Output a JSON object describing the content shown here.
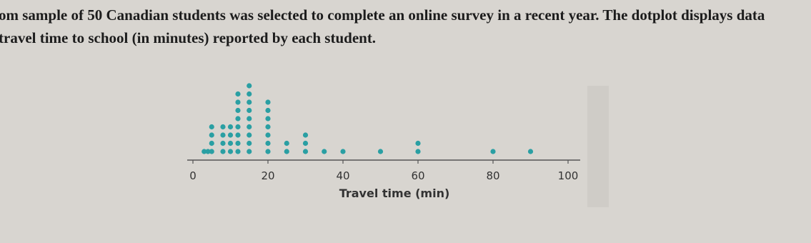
{
  "intro": [
    "om sample of 50 Canadian students was selected to complete an online survey in a recent year. The dotplot displays data",
    "travel time to school (in minutes) reported by each student."
  ],
  "chart_data": {
    "type": "dotplot",
    "x_label": "Travel time (min)",
    "color": "#2a9fa3",
    "x": [
      3,
      4,
      5,
      8,
      10,
      12,
      15,
      20,
      25,
      30,
      35,
      40,
      50,
      60,
      80,
      90
    ],
    "counts": [
      1,
      1,
      4,
      4,
      4,
      8,
      9,
      7,
      2,
      3,
      1,
      1,
      1,
      2,
      1,
      1
    ],
    "xlim": [
      0,
      100
    ],
    "xticks": [
      0,
      20,
      40,
      60,
      80,
      100
    ]
  }
}
